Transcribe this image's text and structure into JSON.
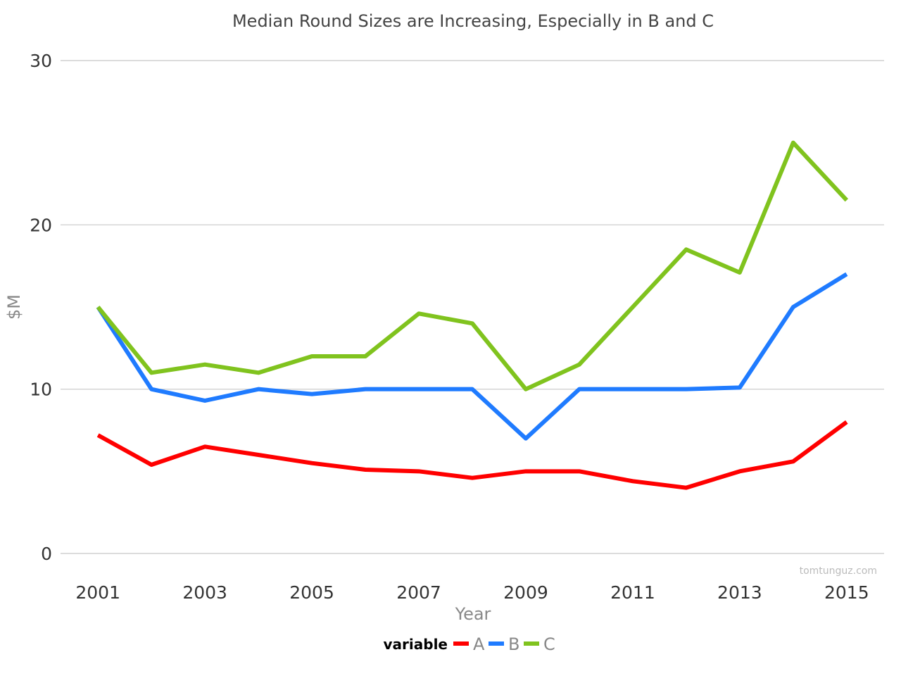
{
  "chart_data": {
    "type": "line",
    "title": "Median Round Sizes are Increasing, Especially in B and C",
    "xlabel": "Year",
    "ylabel": "$M",
    "x": [
      2001,
      2002,
      2003,
      2004,
      2005,
      2006,
      2007,
      2008,
      2009,
      2010,
      2011,
      2012,
      2013,
      2014,
      2015
    ],
    "x_ticks": [
      "2001",
      "2003",
      "2005",
      "2007",
      "2009",
      "2011",
      "2013",
      "2015"
    ],
    "y_ticks": [
      "0",
      "10",
      "20",
      "30"
    ],
    "xlim": [
      2000.3,
      2015.7
    ],
    "ylim": [
      0,
      30
    ],
    "grid": true,
    "legend_position": "bottom",
    "legend_title": "variable",
    "series": [
      {
        "name": "A",
        "color": "#ff0000",
        "values": [
          7.2,
          5.4,
          6.5,
          6.0,
          5.5,
          5.1,
          5.0,
          4.6,
          5.0,
          5.0,
          4.4,
          4.0,
          5.0,
          5.6,
          8.0
        ]
      },
      {
        "name": "B",
        "color": "#1f7bff",
        "values": [
          15.0,
          10.0,
          9.3,
          10.0,
          9.7,
          10.0,
          10.0,
          10.0,
          7.0,
          10.0,
          10.0,
          10.0,
          10.1,
          15.0,
          17.0
        ]
      },
      {
        "name": "C",
        "color": "#80c31e",
        "values": [
          15.0,
          11.0,
          11.5,
          11.0,
          12.0,
          12.0,
          14.6,
          14.0,
          10.0,
          11.5,
          15.0,
          18.5,
          17.1,
          25.0,
          21.5
        ]
      }
    ],
    "watermark": "tomtunguz.com"
  }
}
